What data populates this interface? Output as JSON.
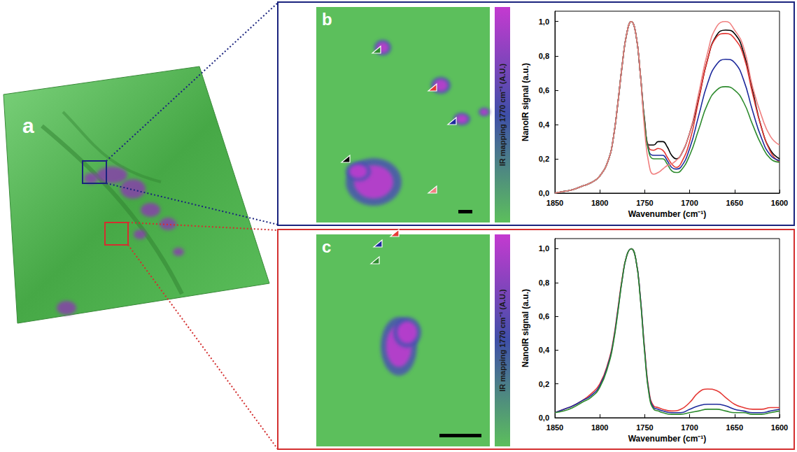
{
  "figure": {
    "panel_labels": [
      "a",
      "b",
      "c"
    ],
    "colorbar_label": "IR mapping 1770 cm⁻¹ (A.U.)"
  },
  "chart_data": [
    {
      "type": "line",
      "panel": "b",
      "x_label": "Wavenumber (cm⁻¹)",
      "y_label": "NanoIR signal (a.u.)",
      "x": [
        1850,
        1840,
        1830,
        1820,
        1810,
        1800,
        1790,
        1785,
        1780,
        1775,
        1770,
        1765,
        1760,
        1755,
        1750,
        1745,
        1740,
        1735,
        1730,
        1725,
        1720,
        1715,
        1710,
        1700,
        1690,
        1680,
        1670,
        1660,
        1650,
        1640,
        1630,
        1620,
        1610,
        1600
      ],
      "series": [
        {
          "color": "#000000",
          "values": [
            0.0,
            0.01,
            0.02,
            0.04,
            0.06,
            0.1,
            0.2,
            0.32,
            0.52,
            0.75,
            0.93,
            1.0,
            0.93,
            0.7,
            0.42,
            0.28,
            0.28,
            0.3,
            0.3,
            0.27,
            0.22,
            0.2,
            0.22,
            0.35,
            0.55,
            0.78,
            0.92,
            0.95,
            0.93,
            0.82,
            0.6,
            0.38,
            0.25,
            0.2
          ]
        },
        {
          "color": "#e53935",
          "values": [
            0.0,
            0.01,
            0.02,
            0.04,
            0.06,
            0.1,
            0.2,
            0.32,
            0.52,
            0.75,
            0.93,
            1.0,
            0.93,
            0.7,
            0.41,
            0.26,
            0.25,
            0.26,
            0.25,
            0.21,
            0.17,
            0.15,
            0.17,
            0.3,
            0.54,
            0.78,
            0.91,
            0.93,
            0.9,
            0.8,
            0.58,
            0.38,
            0.24,
            0.18
          ]
        },
        {
          "color": "#1e2a9c",
          "values": [
            0.0,
            0.01,
            0.02,
            0.04,
            0.06,
            0.1,
            0.2,
            0.32,
            0.52,
            0.75,
            0.93,
            1.0,
            0.93,
            0.7,
            0.4,
            0.24,
            0.22,
            0.22,
            0.22,
            0.19,
            0.15,
            0.14,
            0.15,
            0.26,
            0.45,
            0.64,
            0.75,
            0.78,
            0.76,
            0.66,
            0.48,
            0.32,
            0.22,
            0.19
          ]
        },
        {
          "color": "#2e8b2e",
          "values": [
            0.0,
            0.01,
            0.02,
            0.04,
            0.06,
            0.1,
            0.2,
            0.32,
            0.52,
            0.75,
            0.93,
            1.0,
            0.93,
            0.7,
            0.4,
            0.23,
            0.2,
            0.2,
            0.2,
            0.17,
            0.13,
            0.12,
            0.13,
            0.22,
            0.37,
            0.52,
            0.6,
            0.62,
            0.6,
            0.53,
            0.4,
            0.28,
            0.2,
            0.18
          ]
        },
        {
          "color": "#f08080",
          "values": [
            0.0,
            0.01,
            0.02,
            0.04,
            0.06,
            0.1,
            0.2,
            0.32,
            0.52,
            0.75,
            0.93,
            1.0,
            0.93,
            0.7,
            0.36,
            0.16,
            0.11,
            0.12,
            0.14,
            0.16,
            0.17,
            0.19,
            0.22,
            0.35,
            0.58,
            0.82,
            0.97,
            1.0,
            0.95,
            0.85,
            0.62,
            0.45,
            0.33,
            0.28
          ]
        }
      ],
      "xlim": [
        1850,
        1600
      ],
      "xticks": [
        1850,
        1800,
        1750,
        1700,
        1650,
        1600
      ],
      "ylim": [
        0,
        1.06
      ],
      "yticks": [
        {
          "value": 0,
          "label": "0,0"
        },
        {
          "value": 0.2,
          "label": "0,2"
        },
        {
          "value": 0.4,
          "label": "0,4"
        },
        {
          "value": 0.6,
          "label": "0,6"
        },
        {
          "value": 0.8,
          "label": "0,8"
        },
        {
          "value": 1.0,
          "label": "1,0"
        }
      ],
      "grid": false
    },
    {
      "type": "line",
      "panel": "c",
      "x_label": "Wavenumber (cm⁻¹)",
      "y_label": "NanoIR signal (a.u.)",
      "x": [
        1850,
        1840,
        1830,
        1820,
        1810,
        1800,
        1790,
        1785,
        1780,
        1775,
        1770,
        1765,
        1760,
        1755,
        1750,
        1745,
        1740,
        1735,
        1730,
        1720,
        1710,
        1700,
        1690,
        1680,
        1670,
        1660,
        1650,
        1640,
        1630,
        1620,
        1610,
        1600
      ],
      "series": [
        {
          "color": "#e53935",
          "values": [
            0.03,
            0.05,
            0.07,
            0.1,
            0.14,
            0.2,
            0.34,
            0.46,
            0.64,
            0.83,
            0.96,
            1.0,
            0.94,
            0.72,
            0.4,
            0.15,
            0.07,
            0.06,
            0.05,
            0.04,
            0.05,
            0.09,
            0.15,
            0.17,
            0.16,
            0.12,
            0.08,
            0.06,
            0.05,
            0.05,
            0.06,
            0.06
          ]
        },
        {
          "color": "#1e2a9c",
          "values": [
            0.03,
            0.05,
            0.07,
            0.1,
            0.13,
            0.19,
            0.33,
            0.45,
            0.63,
            0.82,
            0.96,
            1.0,
            0.94,
            0.72,
            0.39,
            0.14,
            0.06,
            0.05,
            0.04,
            0.03,
            0.03,
            0.05,
            0.07,
            0.08,
            0.08,
            0.07,
            0.05,
            0.04,
            0.03,
            0.03,
            0.04,
            0.05
          ]
        },
        {
          "color": "#2e8b2e",
          "values": [
            0.03,
            0.04,
            0.06,
            0.09,
            0.12,
            0.18,
            0.32,
            0.44,
            0.62,
            0.82,
            0.96,
            1.0,
            0.94,
            0.71,
            0.38,
            0.13,
            0.05,
            0.04,
            0.03,
            0.02,
            0.02,
            0.03,
            0.04,
            0.05,
            0.05,
            0.04,
            0.03,
            0.03,
            0.02,
            0.02,
            0.03,
            0.04
          ]
        }
      ],
      "xlim": [
        1850,
        1600
      ],
      "xticks": [
        1850,
        1800,
        1750,
        1700,
        1650,
        1600
      ],
      "ylim": [
        0,
        1.06
      ],
      "yticks": [
        {
          "value": 0,
          "label": "0,0"
        },
        {
          "value": 0.2,
          "label": "0,2"
        },
        {
          "value": 0.4,
          "label": "0,4"
        },
        {
          "value": 0.6,
          "label": "0,6"
        },
        {
          "value": 0.8,
          "label": "0,8"
        },
        {
          "value": 1.0,
          "label": "1,0"
        }
      ],
      "grid": false
    }
  ]
}
